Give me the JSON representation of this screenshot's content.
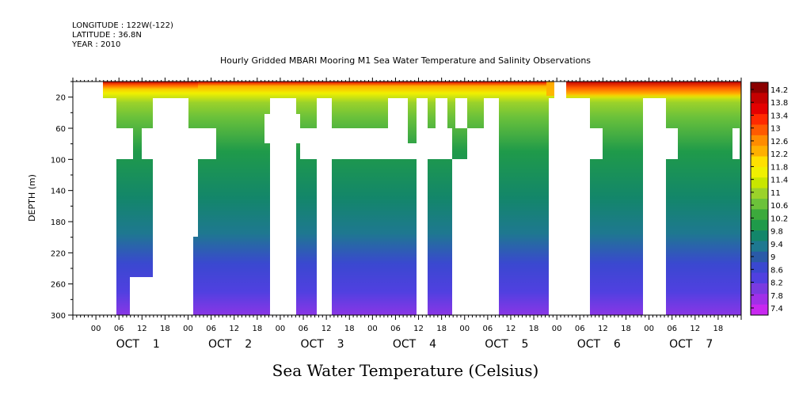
{
  "meta": {
    "longitude": "LONGITUDE : 122W(-122)",
    "latitude": "LATITUDE : 36.8N",
    "year": "YEAR : 2010"
  },
  "chart_data": {
    "type": "heatmap",
    "title": "Hourly Gridded MBARI Mooring M1 Sea Water Temperature and Salinity Observations",
    "xlabel": "",
    "ylabel": "DEPTH (m)",
    "bottom_title": "Sea Water Temperature (Celsius)",
    "x_unit": "hours since 2010-10-01 00:00",
    "xlim": [
      -6,
      168
    ],
    "ylim": [
      300,
      0
    ],
    "y_ticks": [
      20,
      60,
      100,
      140,
      180,
      220,
      260,
      300
    ],
    "x_tick_hours": [
      "00",
      "06",
      "12",
      "18",
      "00",
      "06",
      "12",
      "18",
      "00",
      "06",
      "12",
      "18",
      "00",
      "06",
      "12",
      "18",
      "00",
      "06",
      "12",
      "18",
      "00",
      "06",
      "12",
      "18",
      "00",
      "06",
      "12",
      "18"
    ],
    "x_day_labels": [
      {
        "day": "OCT",
        "num": "1"
      },
      {
        "day": "OCT",
        "num": "2"
      },
      {
        "day": "OCT",
        "num": "3"
      },
      {
        "day": "OCT",
        "num": "4"
      },
      {
        "day": "OCT",
        "num": "5"
      },
      {
        "day": "OCT",
        "num": "6"
      },
      {
        "day": "OCT",
        "num": "7"
      }
    ],
    "colorbar": {
      "labels": [
        "14.2",
        "13.8",
        "13.4",
        "13",
        "12.6",
        "12.2",
        "11.8",
        "11.4",
        "11",
        "10.6",
        "10.2",
        "9.8",
        "9.4",
        "9",
        "8.6",
        "8.2",
        "7.8",
        "7.4"
      ],
      "colors": [
        "#8b0000",
        "#c40000",
        "#e40000",
        "#ff2a00",
        "#ff5a00",
        "#ff8c00",
        "#ffb000",
        "#ffe000",
        "#f0f000",
        "#c8e600",
        "#9bd22a",
        "#6cc23a",
        "#3caa3c",
        "#1f9a4a",
        "#13866a",
        "#1e7890",
        "#2a5aa8",
        "#3a48d0",
        "#5040e0",
        "#7a3ae0",
        "#a030e8",
        "#c828f0"
      ],
      "range": [
        7.4,
        14.4
      ]
    },
    "grid": false
  }
}
